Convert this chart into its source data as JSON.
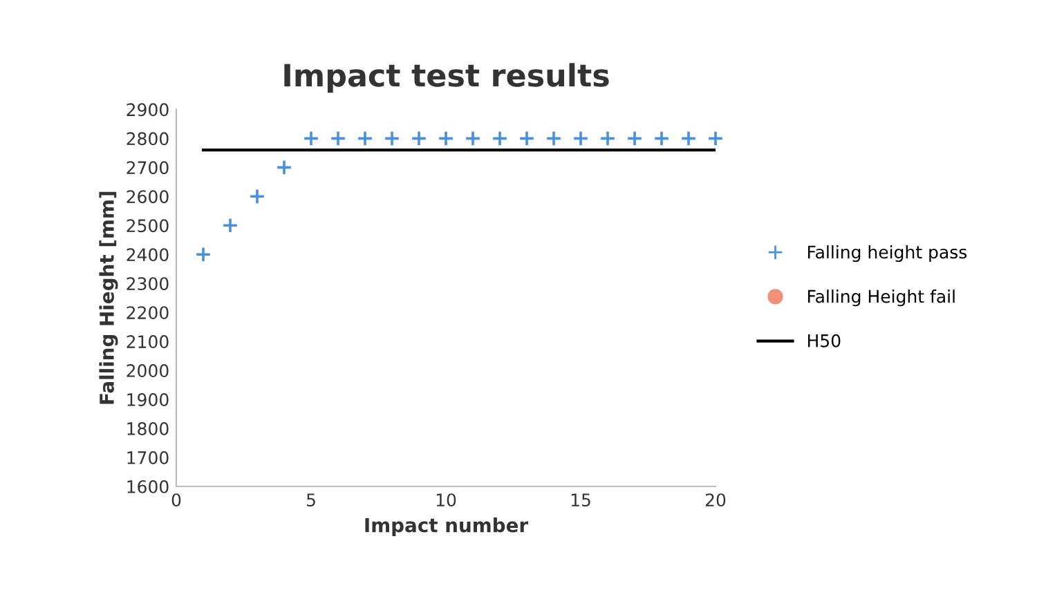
{
  "chart_data": {
    "type": "scatter",
    "title": "Impact test results",
    "xlabel": "Impact number",
    "ylabel": "Falling Hieght [mm]",
    "xlim": [
      0,
      20
    ],
    "xticks": [
      0,
      5,
      10,
      15,
      20
    ],
    "ylim": [
      1600,
      2900
    ],
    "yticks": [
      1600,
      1700,
      1800,
      1900,
      2000,
      2100,
      2200,
      2300,
      2400,
      2500,
      2600,
      2700,
      2800,
      2900
    ],
    "grid": false,
    "legend": "right",
    "marker": "cross",
    "series": [
      {
        "name": "Falling height pass",
        "color": "#4a90d9",
        "x": [
          1,
          2,
          3,
          4,
          5,
          6,
          7,
          8,
          9,
          10,
          11,
          12,
          13,
          14,
          15,
          16,
          17,
          18,
          19,
          20
        ],
        "values": [
          2400,
          2500,
          2600,
          2700,
          2800,
          2800,
          2800,
          2800,
          2800,
          2800,
          2800,
          2800,
          2800,
          2800,
          2800,
          2800,
          2800,
          2800,
          2800,
          2800
        ]
      },
      {
        "name": "Falling Height fail",
        "color": "#f0907a",
        "marker": "circle"
      },
      {
        "name": "H50",
        "type": "line",
        "color": "#000000",
        "marker": "none",
        "line_style": "solid",
        "x": [
          1,
          20
        ],
        "values": [
          2760,
          2760
        ]
      }
    ]
  }
}
